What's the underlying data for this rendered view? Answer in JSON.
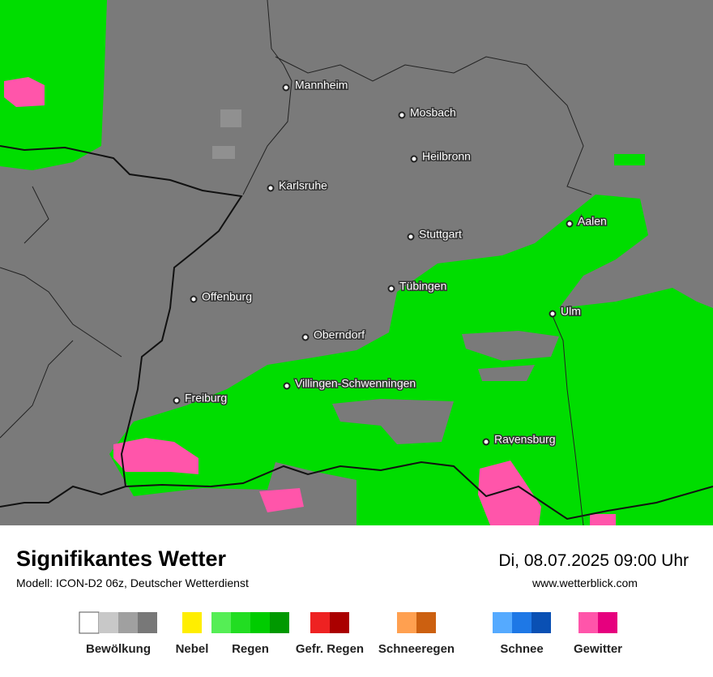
{
  "map": {
    "cities": [
      "Mannheim",
      "Mosbach",
      "Heilbronn",
      "Karlsruhe",
      "Aalen",
      "Stuttgart",
      "Tübingen",
      "Offenburg",
      "Ulm",
      "Oberndorf",
      "Villingen-Schwenningen",
      "Freiburg",
      "Ravensburg"
    ]
  },
  "footer": {
    "title": "Signifikantes Wetter",
    "model": "Modell: ICON-D2 06z, Deutscher Wetterdienst",
    "datetime": "Di, 08.07.2025 09:00 Uhr",
    "website": "www.wetterblick.com"
  },
  "legend": [
    {
      "label": "Bewölkung",
      "colors": [
        "#ffffff",
        "#c8c8c8",
        "#a0a0a0",
        "#787878"
      ]
    },
    {
      "label": "Nebel",
      "colors": [
        "#ffee00"
      ]
    },
    {
      "label": "Regen",
      "colors": [
        "#55ee55",
        "#22dd22",
        "#00cc00",
        "#009900"
      ]
    },
    {
      "label": "Gefr. Regen",
      "colors": [
        "#ee2222",
        "#aa0000"
      ]
    },
    {
      "label": "Schneeregen",
      "colors": [
        "#ffa050",
        "#cc6010"
      ]
    },
    {
      "label": "Schnee",
      "colors": [
        "#55aaff",
        "#1e78e6",
        "#0a50b4"
      ]
    },
    {
      "label": "Gewitter",
      "colors": [
        "#ff55aa",
        "#e6007e"
      ]
    }
  ]
}
